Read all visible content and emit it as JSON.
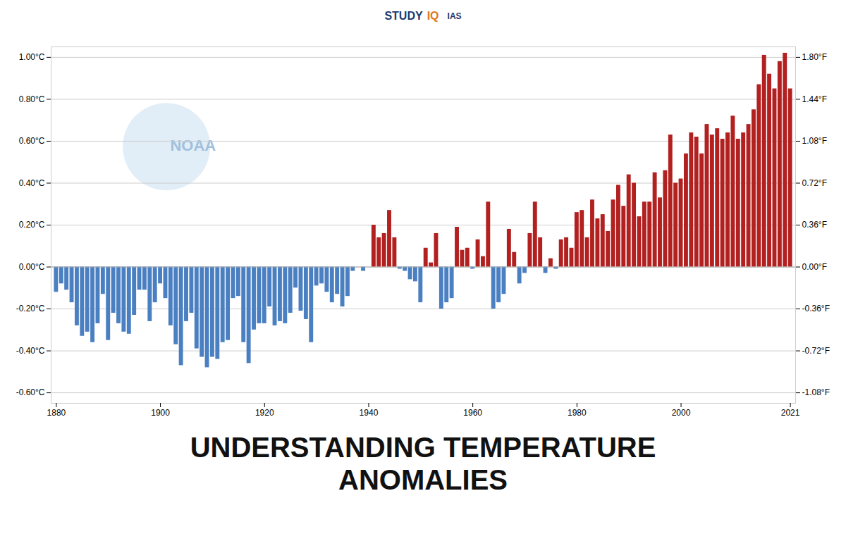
{
  "chart_data": {
    "type": "bar",
    "title": "UNDERSTANDING TEMPERATURE",
    "subtitle": "ANOMALIES",
    "annotations": [
      "NOAA",
      "STUDY",
      "IQ",
      "IAS"
    ],
    "x": [
      1880,
      1881,
      1882,
      1883,
      1884,
      1885,
      1886,
      1887,
      1888,
      1889,
      1890,
      1891,
      1892,
      1893,
      1894,
      1895,
      1896,
      1897,
      1898,
      1899,
      1900,
      1901,
      1902,
      1903,
      1904,
      1905,
      1906,
      1907,
      1908,
      1909,
      1910,
      1911,
      1912,
      1913,
      1914,
      1915,
      1916,
      1917,
      1918,
      1919,
      1920,
      1921,
      1922,
      1923,
      1924,
      1925,
      1926,
      1927,
      1928,
      1929,
      1930,
      1931,
      1932,
      1933,
      1934,
      1935,
      1936,
      1937,
      1938,
      1939,
      1940,
      1941,
      1942,
      1943,
      1944,
      1945,
      1946,
      1947,
      1948,
      1949,
      1950,
      1951,
      1952,
      1953,
      1954,
      1955,
      1956,
      1957,
      1958,
      1959,
      1960,
      1961,
      1962,
      1963,
      1964,
      1965,
      1966,
      1967,
      1968,
      1969,
      1970,
      1971,
      1972,
      1973,
      1974,
      1975,
      1976,
      1977,
      1978,
      1979,
      1980,
      1981,
      1982,
      1983,
      1984,
      1985,
      1986,
      1987,
      1988,
      1989,
      1990,
      1991,
      1992,
      1993,
      1994,
      1995,
      1996,
      1997,
      1998,
      1999,
      2000,
      2001,
      2002,
      2003,
      2004,
      2005,
      2006,
      2007,
      2008,
      2009,
      2010,
      2011,
      2012,
      2013,
      2014,
      2015,
      2016,
      2017,
      2018,
      2019,
      2020,
      2021
    ],
    "values": [
      -0.12,
      -0.08,
      -0.11,
      -0.17,
      -0.28,
      -0.33,
      -0.31,
      -0.36,
      -0.27,
      -0.13,
      -0.35,
      -0.22,
      -0.27,
      -0.31,
      -0.32,
      -0.23,
      -0.11,
      -0.11,
      -0.26,
      -0.17,
      -0.08,
      -0.15,
      -0.28,
      -0.37,
      -0.47,
      -0.26,
      -0.22,
      -0.39,
      -0.43,
      -0.48,
      -0.43,
      -0.44,
      -0.36,
      -0.35,
      -0.15,
      -0.14,
      -0.36,
      -0.46,
      -0.3,
      -0.27,
      -0.27,
      -0.19,
      -0.28,
      -0.26,
      -0.27,
      -0.22,
      -0.1,
      -0.21,
      -0.25,
      -0.36,
      -0.09,
      -0.08,
      -0.12,
      -0.17,
      -0.13,
      -0.19,
      -0.14,
      -0.02,
      -0.0,
      -0.02,
      0.0,
      0.2,
      0.14,
      0.16,
      0.27,
      0.14,
      -0.01,
      -0.02,
      -0.06,
      -0.07,
      -0.17,
      0.09,
      0.02,
      0.16,
      -0.2,
      -0.17,
      -0.15,
      0.19,
      0.08,
      0.09,
      -0.01,
      0.13,
      0.05,
      0.31,
      -0.2,
      -0.17,
      -0.13,
      0.18,
      0.07,
      -0.08,
      -0.03,
      0.16,
      0.31,
      0.14,
      -0.03,
      0.04,
      -0.01,
      0.13,
      0.14,
      0.09,
      0.26,
      0.27,
      0.14,
      0.32,
      0.23,
      0.25,
      0.17,
      0.32,
      0.39,
      0.29,
      0.44,
      0.4,
      0.24,
      0.31,
      0.31,
      0.45,
      0.33,
      0.46,
      0.63,
      0.4,
      0.42,
      0.54,
      0.64,
      0.62,
      0.54,
      0.68,
      0.63,
      0.66,
      0.61,
      0.64,
      0.72,
      0.61,
      0.64,
      0.68,
      0.75,
      0.87,
      1.01,
      0.92,
      0.85,
      0.98,
      1.02,
      0.85
    ],
    "colors": [
      "#4a7fc1",
      "#4a7fc1",
      "#4a7fc1",
      "#4a7fc1",
      "#4a7fc1",
      "#4a7fc1",
      "#4a7fc1",
      "#4a7fc1",
      "#4a7fc1",
      "#4a7fc1",
      "#4a7fc1",
      "#4a7fc1",
      "#4a7fc1",
      "#4a7fc1",
      "#4a7fc1",
      "#4a7fc1",
      "#4a7fc1",
      "#4a7fc1",
      "#4a7fc1",
      "#4a7fc1",
      "#4a7fc1",
      "#4a7fc1",
      "#4a7fc1",
      "#4a7fc1",
      "#4a7fc1",
      "#4a7fc1",
      "#4a7fc1",
      "#4a7fc1",
      "#4a7fc1",
      "#4a7fc1",
      "#4a7fc1",
      "#4a7fc1",
      "#4a7fc1",
      "#4a7fc1",
      "#4a7fc1",
      "#4a7fc1",
      "#4a7fc1",
      "#4a7fc1",
      "#4a7fc1",
      "#4a7fc1",
      "#4a7fc1",
      "#4a7fc1",
      "#4a7fc1",
      "#4a7fc1",
      "#4a7fc1",
      "#4a7fc1",
      "#4a7fc1",
      "#4a7fc1",
      "#4a7fc1",
      "#4a7fc1",
      "#4a7fc1",
      "#4a7fc1",
      "#4a7fc1",
      "#4a7fc1",
      "#4a7fc1",
      "#4a7fc1",
      "#4a7fc1",
      "#4a7fc1",
      "#b22020",
      "#4a7fc1",
      "#b22020",
      "#b22020",
      "#b22020",
      "#b22020",
      "#b22020",
      "#b22020",
      "#4a7fc1",
      "#4a7fc1",
      "#4a7fc1",
      "#4a7fc1",
      "#4a7fc1",
      "#b22020",
      "#b22020",
      "#b22020",
      "#4a7fc1",
      "#4a7fc1",
      "#4a7fc1",
      "#b22020",
      "#b22020",
      "#b22020",
      "#4a7fc1",
      "#b22020",
      "#b22020",
      "#b22020",
      "#4a7fc1",
      "#4a7fc1",
      "#4a7fc1",
      "#b22020",
      "#b22020",
      "#4a7fc1",
      "#4a7fc1",
      "#b22020",
      "#b22020",
      "#b22020",
      "#4a7fc1",
      "#b22020",
      "#4a7fc1",
      "#b22020",
      "#b22020",
      "#b22020",
      "#b22020",
      "#b22020",
      "#b22020",
      "#b22020",
      "#b22020",
      "#b22020",
      "#b22020",
      "#b22020",
      "#b22020",
      "#b22020",
      "#b22020",
      "#b22020",
      "#b22020",
      "#b22020",
      "#b22020",
      "#b22020",
      "#b22020",
      "#b22020",
      "#b22020",
      "#b22020",
      "#b22020",
      "#b22020",
      "#b22020",
      "#b22020",
      "#b22020",
      "#b22020",
      "#b22020",
      "#b22020",
      "#b22020",
      "#b22020",
      "#b22020",
      "#b22020",
      "#b22020",
      "#b22020",
      "#b22020",
      "#b22020",
      "#b22020",
      "#b22020",
      "#b22020",
      "#b22020",
      "#b22020",
      "#b22020"
    ],
    "xlim": [
      1879,
      2022
    ],
    "xticks": [
      1880,
      1900,
      1920,
      1940,
      1960,
      1980,
      2000,
      2021
    ],
    "ylim": [
      -0.65,
      1.05
    ],
    "yticks": [
      {
        "value": -0.6,
        "label": "-0.60°C"
      },
      {
        "value": -0.4,
        "label": "-0.40°C"
      },
      {
        "value": -0.2,
        "label": "-0.20°C"
      },
      {
        "value": 0.0,
        "label": "0.00°C"
      },
      {
        "value": 0.2,
        "label": "0.20°C"
      },
      {
        "value": 0.4,
        "label": "0.40°C"
      },
      {
        "value": 0.6,
        "label": "0.60°C"
      },
      {
        "value": 0.8,
        "label": "0.80°C"
      },
      {
        "value": 1.0,
        "label": "1.00°C"
      }
    ],
    "y2lim": [
      -1.17,
      1.89
    ],
    "y2ticks": [
      {
        "value": -1.08,
        "label": "-1.08°F"
      },
      {
        "value": -0.72,
        "label": "-0.72°F"
      },
      {
        "value": -0.36,
        "label": "-0.36°F"
      },
      {
        "value": 0.0,
        "label": "0.00°F"
      },
      {
        "value": 0.36,
        "label": "0.36°F"
      },
      {
        "value": 0.72,
        "label": "0.72°F"
      },
      {
        "value": 1.08,
        "label": "1.08°F"
      },
      {
        "value": 1.44,
        "label": "1.44°F"
      },
      {
        "value": 1.8,
        "label": "1.80°F"
      }
    ],
    "grid": true
  }
}
